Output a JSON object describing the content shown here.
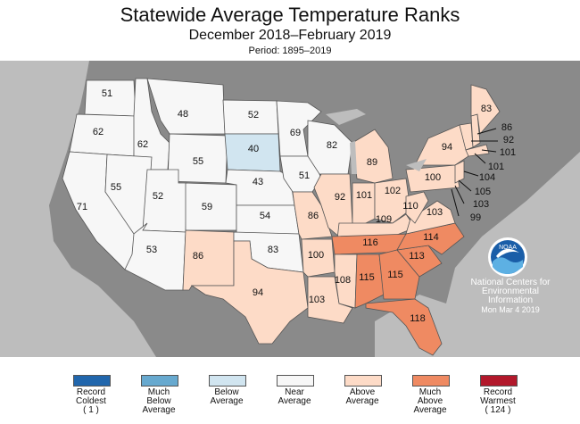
{
  "title": "Statewide Average Temperature Ranks",
  "subtitle": "December 2018–February 2019",
  "period": "Period: 1895–2019",
  "colors": {
    "record_coldest": "#2166ac",
    "much_below": "#67a9cf",
    "below": "#d1e5f0",
    "near": "#f7f7f7",
    "above": "#fddbc7",
    "much_above": "#ef8a62",
    "record_warmest": "#b2182b",
    "background": "#888888",
    "water": "#8c8c8c"
  },
  "legend": [
    {
      "lines": [
        "Record",
        "Coldest",
        "( 1 )"
      ],
      "color": "#2166ac"
    },
    {
      "lines": [
        "Much",
        "Below",
        "Average"
      ],
      "color": "#67a9cf"
    },
    {
      "lines": [
        "Below",
        "Average"
      ],
      "color": "#d1e5f0"
    },
    {
      "lines": [
        "Near",
        "Average"
      ],
      "color": "#f7f7f7"
    },
    {
      "lines": [
        "Above",
        "Average"
      ],
      "color": "#fddbc7"
    },
    {
      "lines": [
        "Much",
        "Above",
        "Average"
      ],
      "color": "#ef8a62"
    },
    {
      "lines": [
        "Record",
        "Warmest",
        "( 124 )"
      ],
      "color": "#b2182b"
    }
  ],
  "ncei": {
    "line1": "National Centers for",
    "line2": "Environmental",
    "line3": "Information",
    "date": "Mon Mar  4 2019"
  },
  "logo_text": "NOAA",
  "ranks": {
    "WA": "51",
    "OR": "62",
    "CA": "71",
    "ID": "62",
    "NV": "55",
    "MT": "48",
    "WY": "55",
    "UT": "52",
    "AZ": "53",
    "CO": "59",
    "NM": "86",
    "ND": "52",
    "SD": "40",
    "NE": "43",
    "KS": "54",
    "OK": "83",
    "TX": "94",
    "MN": "69",
    "IA": "51",
    "MO": "86",
    "AR": "100",
    "LA": "103",
    "WI": "82",
    "IL": "92",
    "MI": "89",
    "IN": "101",
    "OH": "102",
    "KY": "109",
    "TN": "116",
    "MS": "108",
    "AL": "115",
    "GA": "115",
    "FL": "118",
    "SC": "113",
    "NC": "114",
    "VA": "103",
    "WV": "110",
    "PA": "100",
    "NY": "94",
    "ME": "83",
    "NH": "86",
    "VT": "92",
    "MA": "101",
    "RI": "101",
    "CT": "104",
    "NJ": "105",
    "DE": "103",
    "MD": "99"
  }
}
